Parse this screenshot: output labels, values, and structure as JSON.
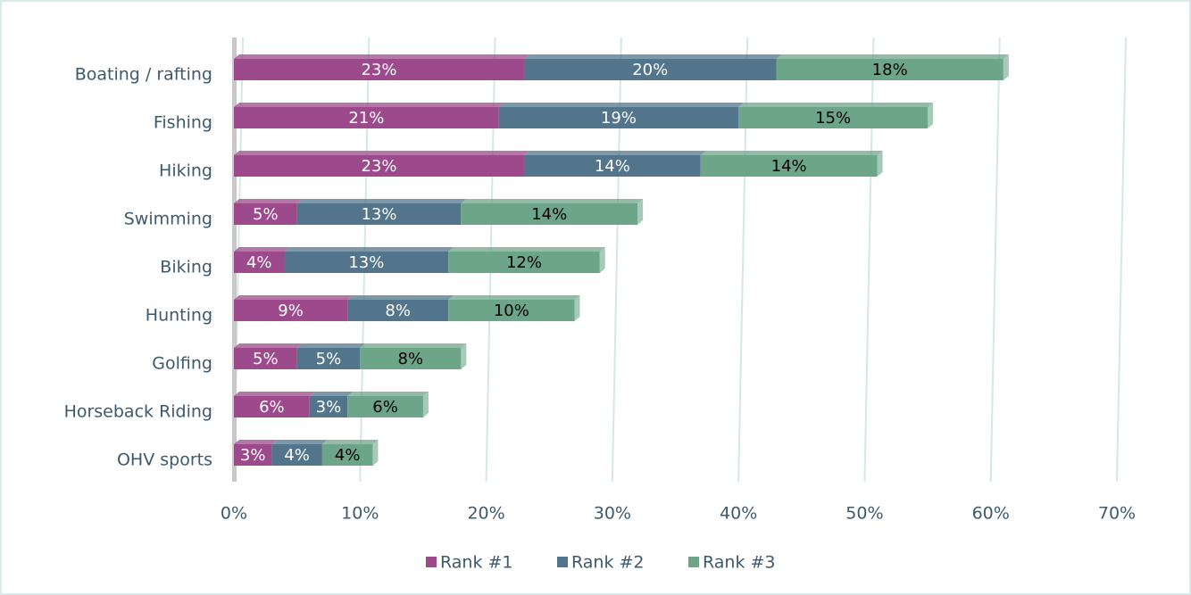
{
  "chart_data": {
    "type": "stacked_barh",
    "categories": [
      "Boating / rafting",
      "Fishing",
      "Hiking",
      "Swimming",
      "Biking",
      "Hunting",
      "Golfing",
      "Horseback Riding",
      "OHV sports"
    ],
    "series": [
      {
        "name": "Rank #1",
        "color": "#9c4a8b",
        "label_color": "#ffffff",
        "values": [
          23,
          21,
          23,
          5,
          4,
          9,
          5,
          6,
          3
        ],
        "value_labels": [
          "23%",
          "21%",
          "23%",
          "5%",
          "4%",
          "9%",
          "5%",
          "6%",
          "3%"
        ]
      },
      {
        "name": "Rank #2",
        "color": "#52758b",
        "label_color": "#ffffff",
        "values": [
          20,
          19,
          14,
          13,
          13,
          8,
          5,
          3,
          4
        ],
        "value_labels": [
          "20%",
          "19%",
          "14%",
          "13%",
          "13%",
          "8%",
          "5%",
          "3%",
          "4%"
        ]
      },
      {
        "name": "Rank #3",
        "color": "#6da588",
        "label_color": "#000000",
        "values": [
          18,
          15,
          14,
          14,
          12,
          10,
          8,
          6,
          4
        ],
        "value_labels": [
          "18%",
          "15%",
          "14%",
          "14%",
          "12%",
          "10%",
          "8%",
          "6%",
          "4%"
        ]
      }
    ],
    "xlim": [
      0,
      70
    ],
    "xticks": [
      {
        "value": 0,
        "label": "0%"
      },
      {
        "value": 10,
        "label": "10%"
      },
      {
        "value": 20,
        "label": "20%"
      },
      {
        "value": 30,
        "label": "30%"
      },
      {
        "value": 40,
        "label": "40%"
      },
      {
        "value": 50,
        "label": "50%"
      },
      {
        "value": 60,
        "label": "60%"
      },
      {
        "value": 70,
        "label": "70%"
      }
    ],
    "grid": true,
    "legend": "bottom"
  }
}
